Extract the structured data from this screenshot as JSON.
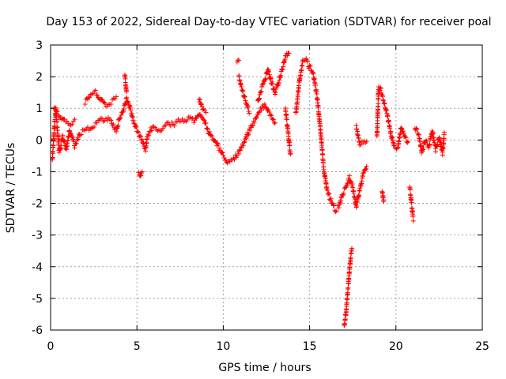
{
  "chart_data": {
    "type": "scatter",
    "title": "Day 153 of 2022, Sidereal Day-to-day VTEC variation (SDTVAR) for receiver poal",
    "xlabel": "GPS time / hours",
    "ylabel": "SDTVAR / TECUs",
    "xlim": [
      0,
      25
    ],
    "ylim": [
      -6,
      3
    ],
    "xticks": [
      0,
      5,
      10,
      15,
      20,
      25
    ],
    "yticks": [
      -6,
      -5,
      -4,
      -3,
      -2,
      -1,
      0,
      1,
      2,
      3
    ],
    "grid": true,
    "marker": "plus",
    "colors": {
      "series": "#ff0000",
      "grid": "#a0a0a0",
      "frame": "#000000"
    },
    "series": [
      {
        "name": "SDTVAR",
        "segments": [
          [
            [
              0.1,
              -0.6
            ],
            [
              0.2,
              0.2
            ],
            [
              0.3,
              1.0
            ],
            [
              0.5,
              -0.4
            ],
            [
              0.7,
              0.1
            ],
            [
              0.9,
              -0.3
            ],
            [
              1.1,
              0.3
            ],
            [
              1.4,
              -0.2
            ],
            [
              1.7,
              0.2
            ],
            [
              2.0,
              0.3
            ],
            [
              2.3,
              0.4
            ],
            [
              2.6,
              0.5
            ],
            [
              2.9,
              0.6
            ],
            [
              3.2,
              0.7
            ],
            [
              3.5,
              0.6
            ],
            [
              3.8,
              0.3
            ],
            [
              4.0,
              0.7
            ],
            [
              4.2,
              0.9
            ],
            [
              4.4,
              1.3
            ],
            [
              4.6,
              1.0
            ],
            [
              4.8,
              0.6
            ],
            [
              5.0,
              0.3
            ],
            [
              5.3,
              0.0
            ],
            [
              5.5,
              -0.3
            ],
            [
              5.6,
              0.1
            ],
            [
              5.9,
              0.4
            ],
            [
              6.2,
              0.3
            ],
            [
              6.5,
              0.4
            ],
            [
              6.8,
              0.5
            ],
            [
              7.1,
              0.5
            ],
            [
              7.4,
              0.6
            ],
            [
              7.7,
              0.6
            ],
            [
              8.0,
              0.7
            ],
            [
              8.3,
              0.6
            ],
            [
              8.6,
              0.8
            ],
            [
              8.9,
              0.6
            ],
            [
              9.2,
              0.2
            ],
            [
              9.5,
              0.0
            ],
            [
              9.8,
              -0.3
            ],
            [
              10.0,
              -0.5
            ],
            [
              10.3,
              -0.7
            ],
            [
              10.6,
              -0.6
            ],
            [
              10.9,
              -0.4
            ],
            [
              11.2,
              -0.1
            ],
            [
              11.5,
              0.3
            ],
            [
              11.8,
              0.6
            ],
            [
              12.1,
              0.9
            ],
            [
              12.4,
              1.1
            ],
            [
              12.7,
              0.8
            ],
            [
              13.0,
              0.5
            ]
          ],
          [
            [
              0.2,
              1.0
            ],
            [
              0.5,
              0.8
            ],
            [
              0.8,
              0.6
            ],
            [
              1.1,
              0.5
            ],
            [
              1.4,
              0.6
            ]
          ],
          [
            [
              2.0,
              1.2
            ],
            [
              2.3,
              1.4
            ],
            [
              2.6,
              1.5
            ],
            [
              2.9,
              1.3
            ],
            [
              3.2,
              1.1
            ],
            [
              3.5,
              1.2
            ],
            [
              3.8,
              1.3
            ]
          ],
          [
            [
              4.3,
              2.0
            ],
            [
              4.4,
              1.5
            ]
          ],
          [
            [
              5.1,
              -1.0
            ],
            [
              5.2,
              -1.1
            ],
            [
              5.3,
              -1.0
            ]
          ],
          [
            [
              8.6,
              1.3
            ],
            [
              8.8,
              1.0
            ],
            [
              9.0,
              0.9
            ]
          ],
          [
            [
              10.8,
              2.5
            ],
            [
              10.9,
              2.5
            ]
          ],
          [
            [
              10.9,
              2.0
            ],
            [
              11.1,
              1.6
            ],
            [
              11.3,
              1.2
            ],
            [
              11.5,
              0.9
            ]
          ],
          [
            [
              12.0,
              1.2
            ],
            [
              12.2,
              1.6
            ],
            [
              12.4,
              1.9
            ],
            [
              12.6,
              2.2
            ],
            [
              12.8,
              1.8
            ],
            [
              13.0,
              1.5
            ],
            [
              13.2,
              1.8
            ],
            [
              13.4,
              2.2
            ],
            [
              13.6,
              2.6
            ],
            [
              13.8,
              2.8
            ]
          ],
          [
            [
              13.6,
              1.0
            ],
            [
              13.7,
              0.5
            ],
            [
              13.8,
              0.0
            ],
            [
              13.9,
              -0.5
            ]
          ],
          [
            [
              14.2,
              0.8
            ],
            [
              14.4,
              1.8
            ],
            [
              14.6,
              2.5
            ],
            [
              14.8,
              2.5
            ],
            [
              15.0,
              2.3
            ],
            [
              15.2,
              2.1
            ],
            [
              15.4,
              1.5
            ],
            [
              15.6,
              0.5
            ],
            [
              15.8,
              -0.8
            ],
            [
              16.0,
              -1.6
            ],
            [
              16.3,
              -2.0
            ],
            [
              16.5,
              -2.2
            ],
            [
              16.7,
              -2.1
            ],
            [
              16.9,
              -1.7
            ],
            [
              17.1,
              -1.5
            ],
            [
              17.3,
              -1.2
            ],
            [
              17.5,
              -1.5
            ],
            [
              17.7,
              -2.1
            ],
            [
              17.9,
              -1.6
            ],
            [
              18.1,
              -1.1
            ],
            [
              18.3,
              -0.8
            ]
          ],
          [
            [
              17.0,
              -5.9
            ],
            [
              17.1,
              -5.5
            ],
            [
              17.2,
              -4.8
            ],
            [
              17.3,
              -4.2
            ],
            [
              17.4,
              -3.6
            ],
            [
              17.45,
              -3.4
            ]
          ],
          [
            [
              17.7,
              0.4
            ],
            [
              17.9,
              -0.1
            ],
            [
              18.1,
              -0.1
            ],
            [
              18.3,
              -0.1
            ]
          ],
          [
            [
              18.9,
              0.1
            ],
            [
              19.0,
              1.7
            ],
            [
              19.1,
              1.6
            ],
            [
              19.3,
              1.2
            ],
            [
              19.5,
              0.8
            ],
            [
              19.7,
              0.2
            ],
            [
              19.9,
              -0.2
            ],
            [
              20.1,
              -0.3
            ],
            [
              20.3,
              0.4
            ],
            [
              20.5,
              0.1
            ],
            [
              20.7,
              -0.1
            ]
          ],
          [
            [
              19.2,
              -1.6
            ],
            [
              19.3,
              -2.0
            ]
          ],
          [
            [
              20.8,
              -1.5
            ],
            [
              20.9,
              -2.0
            ],
            [
              21.0,
              -2.5
            ]
          ],
          [
            [
              21.1,
              0.4
            ],
            [
              21.3,
              0.2
            ],
            [
              21.5,
              -0.4
            ],
            [
              21.7,
              0.0
            ],
            [
              21.9,
              -0.2
            ],
            [
              22.1,
              0.3
            ],
            [
              22.3,
              -0.3
            ],
            [
              22.5,
              0.1
            ],
            [
              22.7,
              -0.4
            ],
            [
              22.8,
              0.2
            ]
          ]
        ]
      }
    ]
  }
}
